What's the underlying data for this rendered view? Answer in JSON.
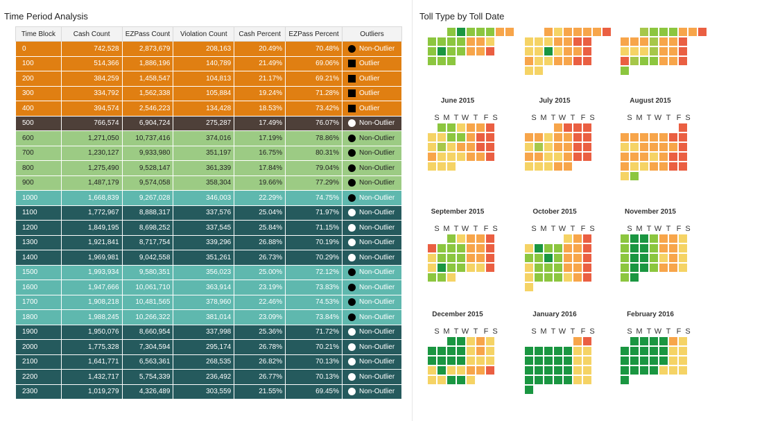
{
  "left_panel": {
    "title": "Time Period Analysis"
  },
  "right_panel": {
    "title": "Toll Type by Toll Date"
  },
  "table": {
    "columns": [
      "Time Block",
      "Cash Count",
      "EZPass Count",
      "Violation Count",
      "Cash Percent",
      "EZPass Percent",
      "Outliers"
    ],
    "rows": [
      {
        "block": "0",
        "cash": "742,528",
        "ezpass": "2,873,679",
        "violation": "208,163",
        "cash_pct": "20.49%",
        "ez_pct": "70.48%",
        "outlier": "Non-Outlier",
        "marker": "dot-black",
        "bg": "#e07f12",
        "fg": "#ffffff"
      },
      {
        "block": "100",
        "cash": "514,366",
        "ezpass": "1,886,196",
        "violation": "140,789",
        "cash_pct": "21.49%",
        "ez_pct": "69.06%",
        "outlier": "Outlier",
        "marker": "square-black",
        "bg": "#e07f12",
        "fg": "#ffffff"
      },
      {
        "block": "200",
        "cash": "384,259",
        "ezpass": "1,458,547",
        "violation": "104,813",
        "cash_pct": "21.17%",
        "ez_pct": "69.21%",
        "outlier": "Outlier",
        "marker": "square-black",
        "bg": "#e07f12",
        "fg": "#ffffff"
      },
      {
        "block": "300",
        "cash": "334,792",
        "ezpass": "1,562,338",
        "violation": "105,884",
        "cash_pct": "19.24%",
        "ez_pct": "71.28%",
        "outlier": "Outlier",
        "marker": "square-black",
        "bg": "#e07f12",
        "fg": "#ffffff"
      },
      {
        "block": "400",
        "cash": "394,574",
        "ezpass": "2,546,223",
        "violation": "134,428",
        "cash_pct": "18.53%",
        "ez_pct": "73.42%",
        "outlier": "Outlier",
        "marker": "square-black",
        "bg": "#e07f12",
        "fg": "#ffffff"
      },
      {
        "block": "500",
        "cash": "766,574",
        "ezpass": "6,904,724",
        "violation": "275,287",
        "cash_pct": "17.49%",
        "ez_pct": "76.07%",
        "outlier": "Non-Outlier",
        "marker": "dot-white",
        "bg": "#4e4039",
        "fg": "#ffffff"
      },
      {
        "block": "600",
        "cash": "1,271,050",
        "ezpass": "10,737,416",
        "violation": "374,016",
        "cash_pct": "17.19%",
        "ez_pct": "78.86%",
        "outlier": "Non-Outlier",
        "marker": "dot-black",
        "bg": "#9ccb84",
        "fg": "#222222"
      },
      {
        "block": "700",
        "cash": "1,230,127",
        "ezpass": "9,933,980",
        "violation": "351,197",
        "cash_pct": "16.75%",
        "ez_pct": "80.31%",
        "outlier": "Non-Outlier",
        "marker": "dot-black",
        "bg": "#9ccb84",
        "fg": "#222222"
      },
      {
        "block": "800",
        "cash": "1,275,490",
        "ezpass": "9,528,147",
        "violation": "361,339",
        "cash_pct": "17.84%",
        "ez_pct": "79.04%",
        "outlier": "Non-Outlier",
        "marker": "dot-black",
        "bg": "#9ccb84",
        "fg": "#222222"
      },
      {
        "block": "900",
        "cash": "1,487,179",
        "ezpass": "9,574,058",
        "violation": "358,304",
        "cash_pct": "19.66%",
        "ez_pct": "77.29%",
        "outlier": "Non-Outlier",
        "marker": "dot-black",
        "bg": "#9ccb84",
        "fg": "#222222"
      },
      {
        "block": "1000",
        "cash": "1,668,839",
        "ezpass": "9,267,028",
        "violation": "346,003",
        "cash_pct": "22.29%",
        "ez_pct": "74.75%",
        "outlier": "Non-Outlier",
        "marker": "dot-black",
        "bg": "#5fb8ae",
        "fg": "#ffffff"
      },
      {
        "block": "1100",
        "cash": "1,772,967",
        "ezpass": "8,888,317",
        "violation": "337,576",
        "cash_pct": "25.04%",
        "ez_pct": "71.97%",
        "outlier": "Non-Outlier",
        "marker": "dot-white",
        "bg": "#255a5d",
        "fg": "#ffffff"
      },
      {
        "block": "1200",
        "cash": "1,849,195",
        "ezpass": "8,698,252",
        "violation": "337,545",
        "cash_pct": "25.84%",
        "ez_pct": "71.15%",
        "outlier": "Non-Outlier",
        "marker": "dot-white",
        "bg": "#255a5d",
        "fg": "#ffffff"
      },
      {
        "block": "1300",
        "cash": "1,921,841",
        "ezpass": "8,717,754",
        "violation": "339,296",
        "cash_pct": "26.88%",
        "ez_pct": "70.19%",
        "outlier": "Non-Outlier",
        "marker": "dot-white",
        "bg": "#255a5d",
        "fg": "#ffffff"
      },
      {
        "block": "1400",
        "cash": "1,969,981",
        "ezpass": "9,042,558",
        "violation": "351,261",
        "cash_pct": "26.73%",
        "ez_pct": "70.29%",
        "outlier": "Non-Outlier",
        "marker": "dot-white",
        "bg": "#255a5d",
        "fg": "#ffffff"
      },
      {
        "block": "1500",
        "cash": "1,993,934",
        "ezpass": "9,580,351",
        "violation": "356,023",
        "cash_pct": "25.00%",
        "ez_pct": "72.12%",
        "outlier": "Non-Outlier",
        "marker": "dot-black",
        "bg": "#5fb8ae",
        "fg": "#ffffff"
      },
      {
        "block": "1600",
        "cash": "1,947,666",
        "ezpass": "10,061,710",
        "violation": "363,914",
        "cash_pct": "23.19%",
        "ez_pct": "73.83%",
        "outlier": "Non-Outlier",
        "marker": "dot-black",
        "bg": "#5fb8ae",
        "fg": "#ffffff"
      },
      {
        "block": "1700",
        "cash": "1,908,218",
        "ezpass": "10,481,565",
        "violation": "378,960",
        "cash_pct": "22.46%",
        "ez_pct": "74.53%",
        "outlier": "Non-Outlier",
        "marker": "dot-black",
        "bg": "#5fb8ae",
        "fg": "#ffffff"
      },
      {
        "block": "1800",
        "cash": "1,988,245",
        "ezpass": "10,266,322",
        "violation": "381,014",
        "cash_pct": "23.09%",
        "ez_pct": "73.84%",
        "outlier": "Non-Outlier",
        "marker": "dot-black",
        "bg": "#5fb8ae",
        "fg": "#ffffff"
      },
      {
        "block": "1900",
        "cash": "1,950,076",
        "ezpass": "8,660,954",
        "violation": "337,998",
        "cash_pct": "25.36%",
        "ez_pct": "71.72%",
        "outlier": "Non-Outlier",
        "marker": "dot-white",
        "bg": "#255a5d",
        "fg": "#ffffff"
      },
      {
        "block": "2000",
        "cash": "1,775,328",
        "ezpass": "7,304,594",
        "violation": "295,174",
        "cash_pct": "26.78%",
        "ez_pct": "70.21%",
        "outlier": "Non-Outlier",
        "marker": "dot-white",
        "bg": "#255a5d",
        "fg": "#ffffff"
      },
      {
        "block": "2100",
        "cash": "1,641,771",
        "ezpass": "6,563,361",
        "violation": "268,535",
        "cash_pct": "26.82%",
        "ez_pct": "70.13%",
        "outlier": "Non-Outlier",
        "marker": "dot-white",
        "bg": "#255a5d",
        "fg": "#ffffff"
      },
      {
        "block": "2200",
        "cash": "1,432,717",
        "ezpass": "5,754,339",
        "violation": "236,492",
        "cash_pct": "26.77%",
        "ez_pct": "70.13%",
        "outlier": "Non-Outlier",
        "marker": "dot-white",
        "bg": "#255a5d",
        "fg": "#ffffff"
      },
      {
        "block": "2300",
        "cash": "1,019,279",
        "ezpass": "4,326,489",
        "violation": "303,559",
        "cash_pct": "21.55%",
        "ez_pct": "69.45%",
        "outlier": "Non-Outlier",
        "marker": "dot-white",
        "bg": "#255a5d",
        "fg": "#ffffff"
      }
    ]
  },
  "calendar": {
    "weekday_labels": [
      "S",
      "M",
      "T",
      "W",
      "T",
      "F",
      "S"
    ],
    "palette": {
      "D": "#1a9641",
      "G": "#8cc63f",
      "L": "#a6c74a",
      "Y": "#f5d365",
      "O": "#f7a54a",
      "R": "#ea5f42"
    },
    "months": [
      {
        "name": "",
        "offset": 2,
        "weeks": [
          "GDGGGOO",
          "GGGGOOY",
          "GDGGOOR",
          "GGG"
        ]
      },
      {
        "name": "",
        "offset": 2,
        "weeks": [
          "OYOOOOR",
          "YYYOORR",
          "YYDYOOR",
          "OYYOORR",
          "YY"
        ]
      },
      {
        "name": "",
        "offset": 2,
        "weeks": [
          "LGGGOOR",
          "OOOLOOR",
          "YYYLOOR",
          "RLGGOOR",
          "G"
        ]
      },
      {
        "name": "June 2015",
        "offset": 1,
        "weeks": [
          "GGYOOR",
          "YYGGORR",
          "YLYOORR",
          "OYYYOOR",
          "YYY"
        ]
      },
      {
        "name": "July 2015",
        "offset": 3,
        "weeks": [
          "ORRR",
          "OOYOORR",
          "YLYOORR",
          "OOYYORR",
          "YYYOO"
        ]
      },
      {
        "name": "August 2015",
        "offset": 6,
        "weeks": [
          "R",
          "OOOOORR",
          "YYOOOOR",
          "OOOYORR",
          "OYYOORR",
          "YG"
        ]
      },
      {
        "name": "September 2015",
        "offset": 2,
        "weeks": [
          "GYOOR",
          "RGGGOOR",
          "YGGGOOR",
          "YDGGYYR",
          "GGY"
        ]
      },
      {
        "name": "October 2015",
        "offset": 4,
        "weeks": [
          "YOR",
          "YDGGOOR",
          "GGDGOOR",
          "YGGGOOR",
          "YGGGYOR",
          "Y"
        ]
      },
      {
        "name": "November 2015",
        "offset": 0,
        "weeks": [
          "GDDGOOY",
          "GDDGOOY",
          "GDDGYOY",
          "GDDGOOY",
          "GD"
        ]
      },
      {
        "name": "December 2015",
        "offset": 2,
        "weeks": [
          "DDYOY",
          "DDDDYOY",
          "DDDDYYY",
          "YDYYOOR",
          "YYDDY"
        ]
      },
      {
        "name": "January 2016",
        "offset": 5,
        "weeks": [
          "OR",
          "DDDDDYY",
          "DDDDDYY",
          "DDDDDYY",
          "DDDDDYY",
          "D"
        ]
      },
      {
        "name": "February 2016",
        "offset": 1,
        "weeks": [
          "DDDDOY",
          "DDDDDYY",
          "DDDDDYY",
          "DDDDYYY",
          "D"
        ]
      }
    ]
  }
}
